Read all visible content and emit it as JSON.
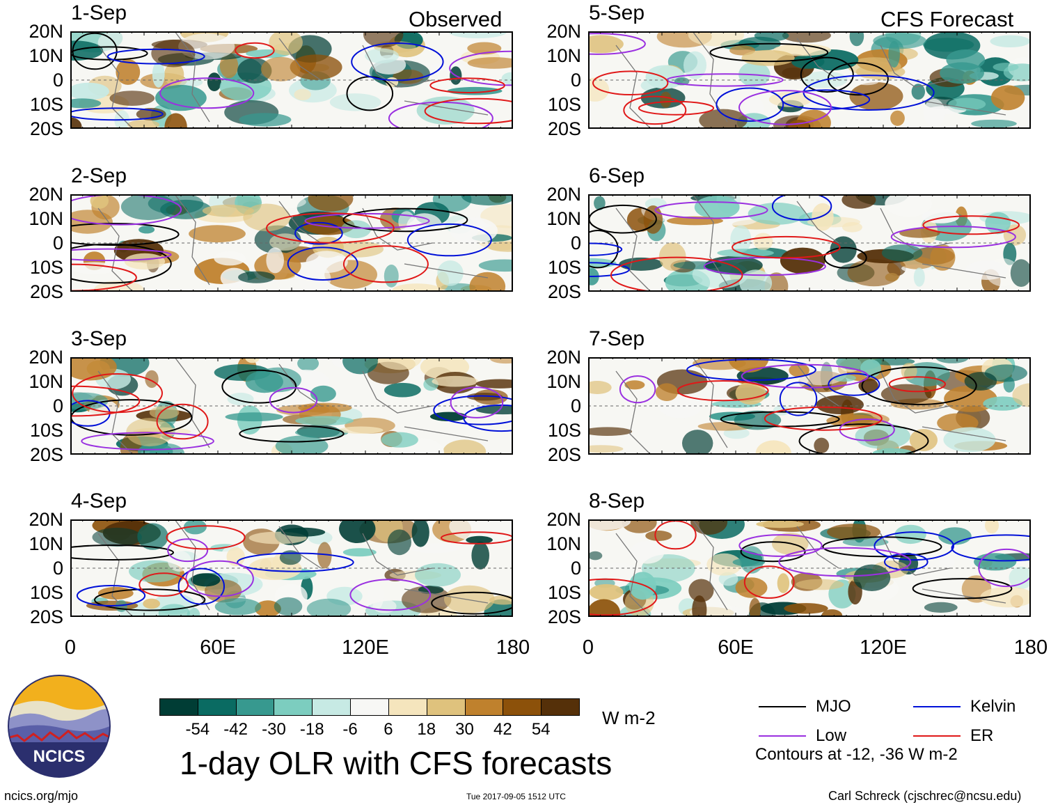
{
  "chart_data": {
    "type": "heatmap",
    "title": "1-day OLR with CFS forecasts",
    "units": "W m-2",
    "columns": [
      {
        "title": "Observed",
        "panels": [
          "1-Sep",
          "2-Sep",
          "3-Sep",
          "4-Sep"
        ]
      },
      {
        "title": "CFS Forecast",
        "panels": [
          "5-Sep",
          "6-Sep",
          "7-Sep",
          "8-Sep"
        ]
      }
    ],
    "y_ticks": [
      "20N",
      "10N",
      "0",
      "10S",
      "20S"
    ],
    "x_ticks": [
      "0",
      "60E",
      "120E",
      "180"
    ],
    "lat_range": [
      -20,
      20
    ],
    "lon_range": [
      0,
      180
    ],
    "colorbar": {
      "labels": [
        "-54",
        "-42",
        "-30",
        "-18",
        "-6",
        "6",
        "18",
        "30",
        "42",
        "54"
      ],
      "colors": [
        "#003d35",
        "#0a6b62",
        "#37998f",
        "#7ccdbf",
        "#c7eae4",
        "#f7f7f5",
        "#f5e5bd",
        "#dfc27d",
        "#bf812d",
        "#8c510a",
        "#553009"
      ]
    },
    "legend": [
      {
        "label": "MJO",
        "color": "#000000"
      },
      {
        "label": "Kelvin",
        "color": "#0010d8"
      },
      {
        "label": "Low",
        "color": "#9a30e0"
      },
      {
        "label": "ER",
        "color": "#e01818"
      }
    ],
    "contour_note": "Contours at -12, -36 W m-2"
  },
  "footer": {
    "left": "ncics.org/mjo",
    "center": "Tue 2017-09-05 1512 UTC",
    "right": "Carl Schreck (cjschrec@ncsu.edu)"
  },
  "logo": {
    "text": "NCICS"
  }
}
